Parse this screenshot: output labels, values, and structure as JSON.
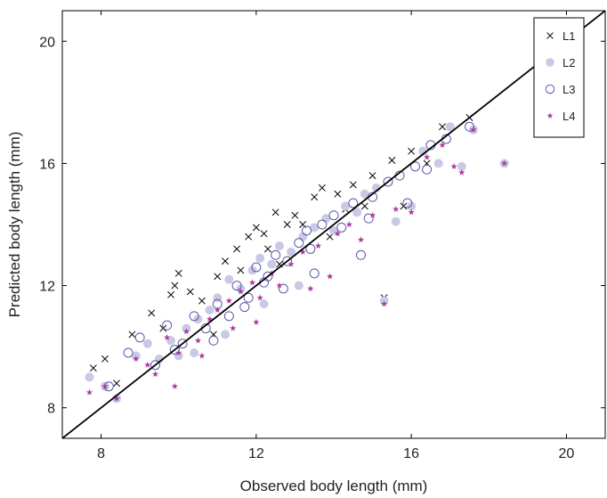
{
  "chart_data": {
    "type": "scatter",
    "xlabel": "Observed body length (mm)",
    "ylabel": "Predicted body length (mm)",
    "xlim": [
      7,
      21
    ],
    "ylim": [
      7,
      21
    ],
    "xticks": [
      8,
      12,
      16,
      20
    ],
    "yticks": [
      8,
      12,
      16,
      20
    ],
    "x_tick_labels": [
      "8",
      "12",
      "16",
      "20"
    ],
    "y_tick_labels": [
      "8",
      "12",
      "16",
      "20"
    ],
    "grid": false,
    "reference_line": "y = x",
    "legend": {
      "placement": "top-right",
      "entries": [
        "L1",
        "L2",
        "L3",
        "L4"
      ]
    },
    "series": [
      {
        "name": "L1",
        "marker": "x",
        "color": "#000000",
        "points": [
          [
            7.8,
            9.3
          ],
          [
            8.1,
            9.6
          ],
          [
            8.8,
            10.4
          ],
          [
            9.3,
            11.1
          ],
          [
            9.8,
            11.7
          ],
          [
            9.9,
            12.0
          ],
          [
            10.0,
            12.4
          ],
          [
            10.3,
            11.8
          ],
          [
            10.6,
            11.5
          ],
          [
            11.2,
            12.8
          ],
          [
            11.5,
            13.2
          ],
          [
            11.8,
            13.6
          ],
          [
            12.0,
            13.9
          ],
          [
            12.2,
            13.7
          ],
          [
            12.5,
            14.4
          ],
          [
            12.8,
            14.0
          ],
          [
            13.0,
            14.3
          ],
          [
            13.5,
            14.9
          ],
          [
            13.7,
            15.2
          ],
          [
            14.1,
            15.0
          ],
          [
            14.5,
            15.3
          ],
          [
            15.0,
            15.6
          ],
          [
            15.5,
            16.1
          ],
          [
            16.0,
            16.4
          ],
          [
            16.8,
            17.2
          ],
          [
            17.5,
            17.5
          ],
          [
            12.3,
            13.2
          ],
          [
            11.0,
            12.3
          ],
          [
            13.2,
            14.0
          ],
          [
            14.8,
            14.6
          ],
          [
            15.3,
            11.6
          ],
          [
            15.8,
            14.6
          ],
          [
            8.4,
            8.8
          ],
          [
            9.6,
            10.6
          ],
          [
            10.9,
            10.4
          ],
          [
            12.6,
            12.7
          ],
          [
            14.3,
            14.5
          ],
          [
            11.6,
            12.5
          ],
          [
            13.9,
            13.6
          ],
          [
            16.4,
            16.0
          ]
        ]
      },
      {
        "name": "L2",
        "marker": "filled-circle",
        "color": "#c9c9e6",
        "points": [
          [
            7.7,
            9.0
          ],
          [
            8.1,
            8.7
          ],
          [
            8.4,
            8.3
          ],
          [
            8.9,
            9.7
          ],
          [
            9.2,
            10.1
          ],
          [
            9.5,
            9.6
          ],
          [
            9.8,
            10.2
          ],
          [
            10.0,
            9.7
          ],
          [
            10.2,
            10.6
          ],
          [
            10.5,
            10.9
          ],
          [
            10.8,
            11.2
          ],
          [
            11.0,
            11.6
          ],
          [
            11.3,
            12.2
          ],
          [
            11.6,
            11.9
          ],
          [
            11.9,
            12.5
          ],
          [
            12.1,
            12.9
          ],
          [
            12.4,
            12.7
          ],
          [
            12.6,
            13.3
          ],
          [
            12.9,
            13.1
          ],
          [
            13.2,
            13.6
          ],
          [
            13.5,
            13.9
          ],
          [
            13.8,
            14.2
          ],
          [
            14.0,
            13.8
          ],
          [
            14.3,
            14.6
          ],
          [
            14.6,
            14.4
          ],
          [
            14.8,
            15.0
          ],
          [
            15.1,
            15.2
          ],
          [
            15.3,
            11.5
          ],
          [
            15.6,
            14.1
          ],
          [
            16.0,
            14.6
          ],
          [
            16.3,
            16.4
          ],
          [
            16.7,
            16.0
          ],
          [
            17.0,
            17.2
          ],
          [
            17.3,
            15.9
          ],
          [
            17.6,
            17.1
          ],
          [
            18.4,
            16.0
          ],
          [
            12.2,
            11.4
          ],
          [
            13.1,
            12.0
          ],
          [
            11.2,
            10.4
          ],
          [
            10.4,
            9.8
          ]
        ]
      },
      {
        "name": "L3",
        "marker": "open-circle",
        "color": "#5a5aa8",
        "points": [
          [
            8.2,
            8.7
          ],
          [
            8.7,
            9.8
          ],
          [
            9.0,
            10.3
          ],
          [
            9.4,
            9.4
          ],
          [
            9.7,
            10.7
          ],
          [
            10.1,
            10.1
          ],
          [
            10.4,
            11.0
          ],
          [
            10.7,
            10.6
          ],
          [
            11.0,
            11.4
          ],
          [
            11.3,
            11.0
          ],
          [
            11.5,
            12.0
          ],
          [
            11.8,
            11.6
          ],
          [
            12.0,
            12.6
          ],
          [
            12.3,
            12.3
          ],
          [
            12.5,
            13.0
          ],
          [
            12.8,
            12.8
          ],
          [
            13.1,
            13.4
          ],
          [
            13.4,
            13.2
          ],
          [
            13.7,
            14.0
          ],
          [
            14.0,
            14.3
          ],
          [
            14.2,
            13.9
          ],
          [
            14.5,
            14.7
          ],
          [
            14.7,
            13.0
          ],
          [
            15.0,
            14.9
          ],
          [
            15.4,
            15.4
          ],
          [
            15.7,
            15.6
          ],
          [
            16.1,
            15.9
          ],
          [
            16.5,
            16.6
          ],
          [
            16.9,
            16.8
          ],
          [
            17.5,
            17.2
          ],
          [
            12.7,
            11.9
          ],
          [
            13.5,
            12.4
          ],
          [
            11.7,
            11.3
          ],
          [
            10.9,
            10.2
          ],
          [
            9.9,
            9.9
          ],
          [
            14.9,
            14.2
          ],
          [
            13.3,
            13.8
          ],
          [
            12.2,
            12.1
          ],
          [
            16.4,
            15.8
          ],
          [
            15.9,
            14.7
          ]
        ]
      },
      {
        "name": "L4",
        "marker": "star",
        "color": "#b03aa0",
        "points": [
          [
            7.7,
            8.5
          ],
          [
            8.1,
            8.7
          ],
          [
            8.4,
            8.3
          ],
          [
            8.9,
            9.6
          ],
          [
            9.2,
            9.4
          ],
          [
            9.4,
            9.1
          ],
          [
            9.7,
            10.3
          ],
          [
            10.0,
            9.8
          ],
          [
            10.2,
            10.5
          ],
          [
            10.5,
            10.2
          ],
          [
            10.8,
            10.9
          ],
          [
            11.0,
            11.2
          ],
          [
            11.3,
            11.5
          ],
          [
            11.6,
            11.8
          ],
          [
            11.9,
            12.1
          ],
          [
            12.1,
            11.6
          ],
          [
            12.4,
            12.4
          ],
          [
            12.6,
            12.0
          ],
          [
            12.9,
            12.7
          ],
          [
            13.2,
            13.1
          ],
          [
            13.4,
            11.9
          ],
          [
            13.6,
            13.3
          ],
          [
            13.9,
            12.3
          ],
          [
            14.1,
            13.7
          ],
          [
            14.4,
            14.0
          ],
          [
            14.7,
            13.5
          ],
          [
            15.0,
            14.3
          ],
          [
            15.3,
            11.4
          ],
          [
            15.6,
            14.5
          ],
          [
            16.0,
            14.4
          ],
          [
            16.4,
            16.2
          ],
          [
            16.8,
            16.6
          ],
          [
            17.1,
            15.9
          ],
          [
            17.3,
            15.7
          ],
          [
            17.6,
            17.1
          ],
          [
            18.4,
            16.0
          ],
          [
            12.0,
            10.8
          ],
          [
            11.4,
            10.6
          ],
          [
            9.9,
            8.7
          ],
          [
            10.6,
            9.7
          ]
        ]
      }
    ]
  }
}
